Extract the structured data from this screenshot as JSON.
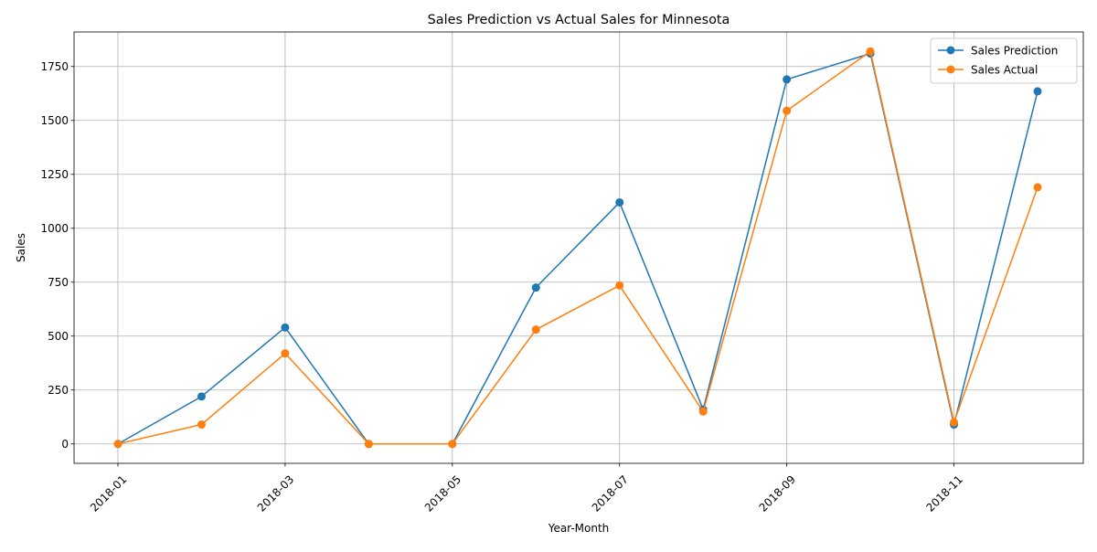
{
  "chart_data": {
    "type": "line",
    "title": "Sales Prediction vs Actual Sales for Minnesota",
    "xlabel": "Year-Month",
    "ylabel": "Sales",
    "x": [
      "2018-01",
      "2018-02",
      "2018-03",
      "2018-04",
      "2018-05",
      "2018-06",
      "2018-07",
      "2018-08",
      "2018-09",
      "2018-10",
      "2018-11",
      "2018-12"
    ],
    "x_ticks": [
      "2018-01",
      "2018-03",
      "2018-05",
      "2018-07",
      "2018-09",
      "2018-11"
    ],
    "y_ticks": [
      0,
      250,
      500,
      750,
      1000,
      1250,
      1500,
      1750
    ],
    "ylim": [
      -90,
      1910
    ],
    "grid": true,
    "legend_position": "upper right",
    "series": [
      {
        "name": "Sales Prediction",
        "color": "#1f77b4",
        "marker": "circle",
        "values": [
          0,
          220,
          540,
          0,
          0,
          725,
          1120,
          160,
          1690,
          1810,
          90,
          1635
        ]
      },
      {
        "name": "Sales Actual",
        "color": "#ff7f0e",
        "marker": "circle",
        "values": [
          0,
          90,
          420,
          0,
          0,
          530,
          735,
          150,
          1545,
          1820,
          100,
          1190
        ]
      }
    ]
  }
}
